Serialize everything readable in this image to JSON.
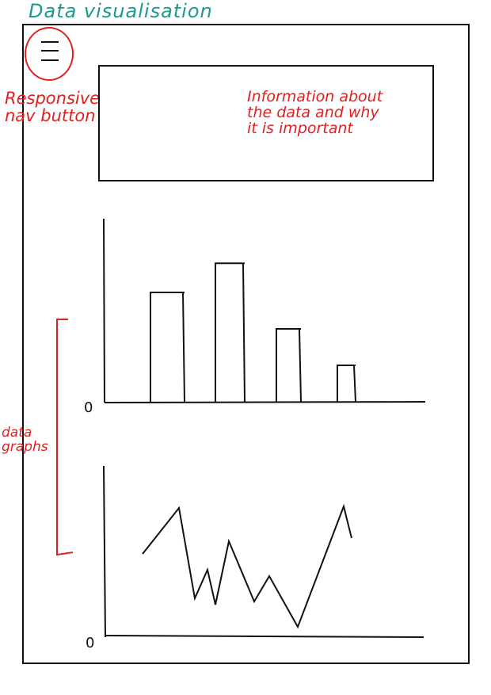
{
  "title": "Data visualisation",
  "nav_button": {
    "annotation": "Responsive\nnav button",
    "icon": "hamburger-menu-icon",
    "ring_color": "#e02020"
  },
  "info_box": {
    "annotation": "Information about\nthe data and why\nit is important"
  },
  "graphs_annotation": "data\ngraphs",
  "colors": {
    "title": "#1a9a8e",
    "annotation": "#e02020",
    "ink": "#111111"
  },
  "chart_data": [
    {
      "type": "bar",
      "values": [
        6.0,
        7.6,
        4.0,
        2.0
      ],
      "zero_label": "0",
      "ylim": [
        0,
        10
      ]
    },
    {
      "type": "line",
      "values": [
        5.2,
        8.1,
        2.4,
        4.2,
        2.0,
        6.0,
        2.2,
        3.8,
        0.6,
        8.2,
        6.2
      ],
      "zero_label": "0",
      "ylim": [
        0,
        10
      ]
    }
  ]
}
